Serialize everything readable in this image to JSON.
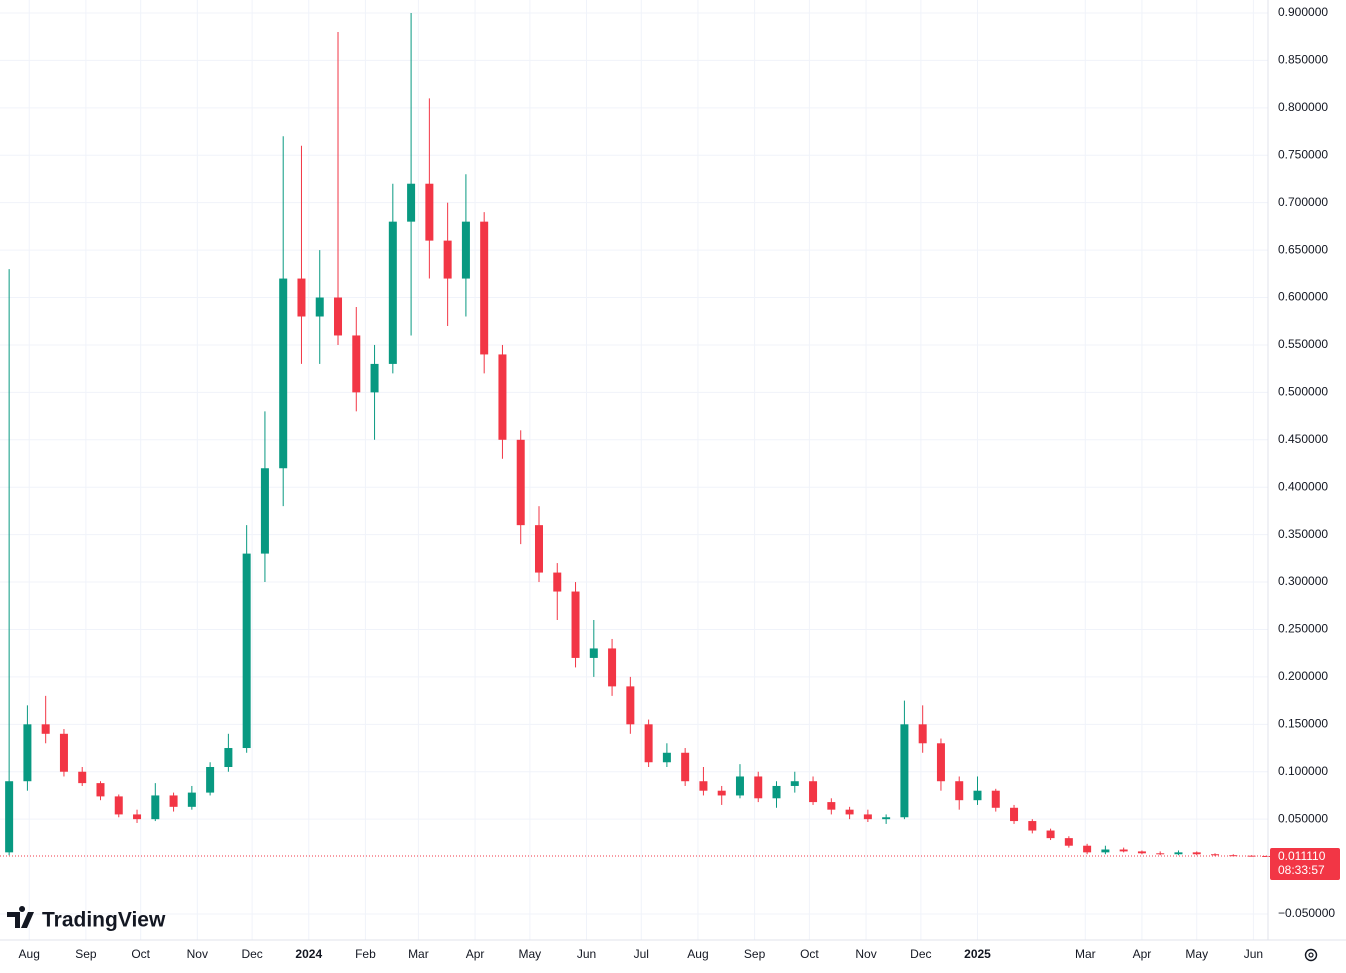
{
  "chart_data": {
    "type": "candlestick",
    "brand": "TradingView",
    "x": [
      "2023-07-21",
      "2023-07-31",
      "2023-08-10",
      "2023-08-20",
      "2023-08-30",
      "2023-09-09",
      "2023-09-19",
      "2023-09-29",
      "2023-10-09",
      "2023-10-19",
      "2023-10-29",
      "2023-11-08",
      "2023-11-18",
      "2023-11-28",
      "2023-12-08",
      "2023-12-18",
      "2023-12-28",
      "2024-01-07",
      "2024-01-17",
      "2024-01-27",
      "2024-02-06",
      "2024-02-16",
      "2024-02-26",
      "2024-03-07",
      "2024-03-17",
      "2024-03-27",
      "2024-04-06",
      "2024-04-16",
      "2024-04-26",
      "2024-05-06",
      "2024-05-16",
      "2024-05-26",
      "2024-06-05",
      "2024-06-15",
      "2024-06-25",
      "2024-07-05",
      "2024-07-15",
      "2024-07-25",
      "2024-08-04",
      "2024-08-14",
      "2024-08-24",
      "2024-09-03",
      "2024-09-13",
      "2024-09-23",
      "2024-10-03",
      "2024-10-13",
      "2024-10-23",
      "2024-11-02",
      "2024-11-12",
      "2024-11-22",
      "2024-12-02",
      "2024-12-12",
      "2024-12-22",
      "2025-01-01",
      "2025-01-11",
      "2025-01-21",
      "2025-01-31",
      "2025-02-10",
      "2025-02-20",
      "2025-03-02",
      "2025-03-12",
      "2025-03-22",
      "2025-04-01",
      "2025-04-11",
      "2025-04-21",
      "2025-05-01",
      "2025-05-11",
      "2025-05-21",
      "2025-05-31",
      "2025-06-08"
    ],
    "open": [
      0.015,
      0.09,
      0.15,
      0.14,
      0.1,
      0.088,
      0.074,
      0.055,
      0.05,
      0.075,
      0.063,
      0.078,
      0.105,
      0.125,
      0.33,
      0.42,
      0.62,
      0.58,
      0.6,
      0.56,
      0.5,
      0.53,
      0.68,
      0.72,
      0.66,
      0.62,
      0.68,
      0.54,
      0.45,
      0.36,
      0.31,
      0.29,
      0.22,
      0.23,
      0.19,
      0.15,
      0.11,
      0.12,
      0.09,
      0.08,
      0.075,
      0.095,
      0.072,
      0.085,
      0.09,
      0.068,
      0.06,
      0.055,
      0.05,
      0.052,
      0.15,
      0.13,
      0.09,
      0.07,
      0.08,
      0.062,
      0.048,
      0.038,
      0.03,
      0.022,
      0.015,
      0.018,
      0.016,
      0.014,
      0.013,
      0.015,
      0.013,
      0.012,
      0.0115,
      0.0112
    ],
    "high": [
      0.63,
      0.17,
      0.18,
      0.145,
      0.105,
      0.09,
      0.076,
      0.06,
      0.088,
      0.078,
      0.085,
      0.11,
      0.14,
      0.36,
      0.48,
      0.77,
      0.76,
      0.65,
      0.88,
      0.59,
      0.55,
      0.72,
      0.9,
      0.81,
      0.7,
      0.73,
      0.69,
      0.55,
      0.46,
      0.38,
      0.32,
      0.3,
      0.26,
      0.24,
      0.2,
      0.155,
      0.13,
      0.125,
      0.105,
      0.085,
      0.108,
      0.1,
      0.09,
      0.1,
      0.095,
      0.072,
      0.063,
      0.06,
      0.055,
      0.175,
      0.17,
      0.135,
      0.095,
      0.095,
      0.082,
      0.065,
      0.05,
      0.04,
      0.032,
      0.024,
      0.022,
      0.02,
      0.017,
      0.016,
      0.017,
      0.016,
      0.014,
      0.013,
      0.012,
      0.0115
    ],
    "low": [
      0.012,
      0.08,
      0.13,
      0.095,
      0.085,
      0.07,
      0.052,
      0.046,
      0.048,
      0.058,
      0.06,
      0.075,
      0.1,
      0.12,
      0.3,
      0.38,
      0.53,
      0.53,
      0.55,
      0.48,
      0.45,
      0.52,
      0.56,
      0.62,
      0.57,
      0.58,
      0.52,
      0.43,
      0.34,
      0.3,
      0.26,
      0.21,
      0.2,
      0.18,
      0.14,
      0.105,
      0.105,
      0.085,
      0.075,
      0.065,
      0.072,
      0.068,
      0.062,
      0.078,
      0.065,
      0.055,
      0.05,
      0.047,
      0.045,
      0.05,
      0.12,
      0.08,
      0.06,
      0.065,
      0.058,
      0.045,
      0.035,
      0.028,
      0.02,
      0.013,
      0.013,
      0.015,
      0.013,
      0.012,
      0.012,
      0.012,
      0.011,
      0.011,
      0.0105,
      0.0108
    ],
    "close": [
      0.09,
      0.15,
      0.14,
      0.1,
      0.088,
      0.074,
      0.055,
      0.05,
      0.075,
      0.063,
      0.078,
      0.105,
      0.125,
      0.33,
      0.42,
      0.62,
      0.58,
      0.6,
      0.56,
      0.5,
      0.53,
      0.68,
      0.72,
      0.66,
      0.62,
      0.68,
      0.54,
      0.45,
      0.36,
      0.31,
      0.29,
      0.22,
      0.23,
      0.19,
      0.15,
      0.11,
      0.12,
      0.09,
      0.08,
      0.075,
      0.095,
      0.072,
      0.085,
      0.09,
      0.068,
      0.06,
      0.055,
      0.05,
      0.052,
      0.15,
      0.13,
      0.09,
      0.07,
      0.08,
      0.062,
      0.048,
      0.038,
      0.03,
      0.022,
      0.015,
      0.018,
      0.016,
      0.014,
      0.013,
      0.015,
      0.013,
      0.012,
      0.0115,
      0.0112,
      0.01111
    ],
    "up_color": "#089981",
    "down_color": "#f23645",
    "xlim": [
      "2023-07-16",
      "2025-06-09"
    ],
    "xticks": [
      {
        "value": "2023-08-01",
        "label": "Aug"
      },
      {
        "value": "2023-09-01",
        "label": "Sep"
      },
      {
        "value": "2023-10-01",
        "label": "Oct"
      },
      {
        "value": "2023-11-01",
        "label": "Nov"
      },
      {
        "value": "2023-12-01",
        "label": "Dec"
      },
      {
        "value": "2024-01-01",
        "label": "2024"
      },
      {
        "value": "2024-02-01",
        "label": "Feb"
      },
      {
        "value": "2024-03-01",
        "label": "Mar"
      },
      {
        "value": "2024-04-01",
        "label": "Apr"
      },
      {
        "value": "2024-05-01",
        "label": "May"
      },
      {
        "value": "2024-06-01",
        "label": "Jun"
      },
      {
        "value": "2024-07-01",
        "label": "Jul"
      },
      {
        "value": "2024-08-01",
        "label": "Aug"
      },
      {
        "value": "2024-09-01",
        "label": "Sep"
      },
      {
        "value": "2024-10-01",
        "label": "Oct"
      },
      {
        "value": "2024-11-01",
        "label": "Nov"
      },
      {
        "value": "2024-12-01",
        "label": "Dec"
      },
      {
        "value": "2025-01-01",
        "label": "2025"
      },
      {
        "value": "2025-03-01",
        "label": "Mar"
      },
      {
        "value": "2025-04-01",
        "label": "Apr"
      },
      {
        "value": "2025-05-01",
        "label": "May"
      },
      {
        "value": "2025-06-01",
        "label": "Jun"
      }
    ],
    "ylim": [
      -0.05,
      0.9
    ],
    "yticks": [
      {
        "value": -0.05,
        "label": "−0.050000"
      },
      {
        "value": 0.05,
        "label": "0.050000"
      },
      {
        "value": 0.1,
        "label": "0.100000"
      },
      {
        "value": 0.15,
        "label": "0.150000"
      },
      {
        "value": 0.2,
        "label": "0.200000"
      },
      {
        "value": 0.25,
        "label": "0.250000"
      },
      {
        "value": 0.3,
        "label": "0.300000"
      },
      {
        "value": 0.35,
        "label": "0.350000"
      },
      {
        "value": 0.4,
        "label": "0.400000"
      },
      {
        "value": 0.45,
        "label": "0.450000"
      },
      {
        "value": 0.5,
        "label": "0.500000"
      },
      {
        "value": 0.55,
        "label": "0.550000"
      },
      {
        "value": 0.6,
        "label": "0.600000"
      },
      {
        "value": 0.65,
        "label": "0.650000"
      },
      {
        "value": 0.7,
        "label": "0.700000"
      },
      {
        "value": 0.75,
        "label": "0.750000"
      },
      {
        "value": 0.8,
        "label": "0.800000"
      },
      {
        "value": 0.85,
        "label": "0.850000"
      },
      {
        "value": 0.9,
        "label": "0.900000"
      }
    ],
    "grid": true,
    "last_price": {
      "value": 0.01111,
      "label": "0.011110"
    },
    "countdown": "08:33:57"
  }
}
